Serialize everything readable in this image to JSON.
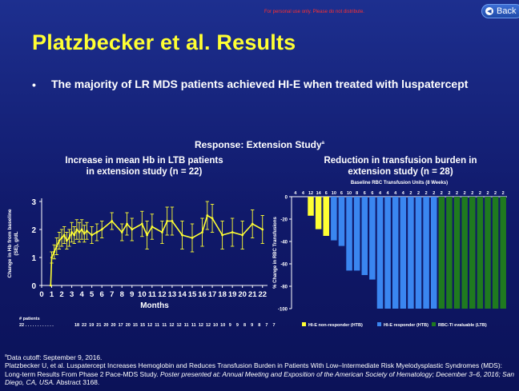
{
  "disclaimer": "For personal use only. Please do not distribute.",
  "back_button": {
    "label": "Back",
    "icon": "back-arrow-icon"
  },
  "title": "Platzbecker et al. Results",
  "bullet": "The majority of LR MDS patients achieved HI-E when treated with luspatercept",
  "study_title": "Response: Extension Study",
  "study_title_sup": "a",
  "colors": {
    "title": "#ffff33",
    "line": "#ffff33",
    "hie_non": "#ffff33",
    "hie": "#3a86f0",
    "rbcti": "#1f7a1f"
  },
  "chart_data": [
    {
      "type": "line",
      "title": "Increase in mean Hb in LTB patients in extension study (n = 22)",
      "title_lines": [
        "Increase in mean Hb in LTB patients",
        "in extension study (n = 22)"
      ],
      "xlabel": "Months",
      "ylabel_lines": [
        "Change in Hb from baseline",
        "(SE), g/dL"
      ],
      "xlim": [
        0,
        22.5
      ],
      "ylim": [
        0,
        3
      ],
      "xticks": [
        0,
        1,
        2,
        3,
        4,
        5,
        6,
        7,
        8,
        9,
        10,
        11,
        12,
        13,
        14,
        15,
        16,
        17,
        18,
        19,
        20,
        21,
        22
      ],
      "xtick_labels": [
        "0",
        "1",
        "2",
        "3",
        "4",
        "5",
        "6",
        "7",
        "8",
        "9",
        "10",
        "11",
        "12",
        "13",
        "14",
        "15",
        "16",
        "17",
        "18",
        "19",
        "20",
        "21",
        "22"
      ],
      "yticks": [
        0,
        1,
        2,
        3
      ],
      "patients_label": "# patients",
      "patients_counts": [
        "22",
        "18",
        "22",
        "19",
        "21",
        "20",
        "20",
        "17",
        "20",
        "15",
        "15",
        "12",
        "11",
        "11",
        "12",
        "12",
        "11",
        "11",
        "12",
        "12",
        "10",
        "10",
        "9",
        "9",
        "8",
        "9",
        "8",
        "7",
        "7"
      ],
      "patients_first": "22 . . . . . . . . . . . .",
      "x": [
        0.9,
        1.0,
        1.25,
        1.5,
        1.75,
        2.0,
        2.25,
        2.5,
        2.75,
        3.0,
        3.25,
        3.5,
        3.75,
        4.0,
        4.25,
        4.5,
        5.0,
        5.5,
        6.0,
        7.0,
        8.0,
        8.5,
        9.0,
        10.0,
        10.5,
        11.0,
        12.0,
        12.5,
        13.0,
        14.0,
        15.0,
        16.0,
        16.5,
        17.0,
        18.0,
        19.0,
        20.0,
        21.0,
        22.0
      ],
      "y": [
        0.0,
        1.0,
        1.2,
        1.4,
        1.6,
        1.7,
        1.8,
        1.6,
        1.7,
        1.9,
        1.8,
        2.0,
        1.9,
        2.0,
        1.85,
        1.95,
        1.8,
        1.9,
        2.0,
        2.3,
        1.9,
        2.2,
        2.0,
        2.2,
        1.8,
        2.1,
        1.9,
        2.3,
        2.3,
        1.8,
        1.7,
        1.9,
        2.5,
        2.4,
        1.8,
        1.9,
        1.8,
        2.2,
        2.0
      ],
      "se": [
        0.0,
        0.2,
        0.25,
        0.3,
        0.3,
        0.3,
        0.3,
        0.3,
        0.3,
        0.35,
        0.3,
        0.35,
        0.35,
        0.35,
        0.3,
        0.3,
        0.3,
        0.3,
        0.3,
        0.3,
        0.3,
        0.4,
        0.4,
        0.45,
        0.5,
        0.45,
        0.4,
        0.5,
        0.5,
        0.5,
        0.5,
        0.5,
        0.5,
        0.5,
        0.5,
        0.5,
        0.5,
        0.5,
        0.5
      ]
    },
    {
      "type": "bar",
      "title": "Reduction in transfusion burden in extension study (n = 28)",
      "title_lines": [
        "Reduction in transfusion burden in",
        "extension study (n = 28)"
      ],
      "subtitle": "Baseline RBC Transfusion Units (8 Weeks)",
      "ylabel": "% Change in RBC Transfusions",
      "ylim": [
        -100,
        0
      ],
      "yticks": [
        0,
        -20,
        -40,
        -60,
        -80,
        -100
      ],
      "top_labels": [
        "4",
        "4",
        "12",
        "14",
        "6",
        "10",
        "6",
        "10",
        "8",
        "6",
        "6",
        "4",
        "4",
        "4",
        "4",
        "2",
        "2",
        "2",
        "2",
        "2",
        "2",
        "2",
        "2",
        "2",
        "2",
        "2",
        "2",
        "2"
      ],
      "values": [
        0,
        0,
        -17,
        -29,
        -35,
        -39,
        -44,
        -66,
        -66,
        -70,
        -74,
        -100,
        -100,
        -100,
        -100,
        -100,
        -100,
        -100,
        -100,
        -100,
        -100,
        -100,
        -100,
        -100,
        -100,
        -100,
        -100,
        -100
      ],
      "categories": [
        "HI-E non-responder (HTB)",
        "HI-E non-responder (HTB)",
        "HI-E non-responder (HTB)",
        "HI-E non-responder (HTB)",
        "HI-E non-responder (HTB)",
        "HI-E responder (HTB)",
        "HI-E responder (HTB)",
        "HI-E responder (HTB)",
        "HI-E responder (HTB)",
        "HI-E responder (HTB)",
        "HI-E responder (HTB)",
        "HI-E responder (HTB)",
        "HI-E responder (HTB)",
        "HI-E responder (HTB)",
        "HI-E responder (HTB)",
        "HI-E responder (HTB)",
        "HI-E responder (HTB)",
        "HI-E responder (HTB)",
        "HI-E responder (HTB)",
        "RBC-TI evaluable (LTB)",
        "RBC-TI evaluable (LTB)",
        "RBC-TI evaluable (LTB)",
        "RBC-TI evaluable (LTB)",
        "RBC-TI evaluable (LTB)",
        "RBC-TI evaluable (LTB)",
        "RBC-TI evaluable (LTB)",
        "RBC-TI evaluable (LTB)",
        "RBC-TI evaluable (LTB)"
      ],
      "bar_groups": [
        "non",
        "non",
        "non",
        "non",
        "non",
        "hie",
        "hie",
        "hie",
        "hie",
        "hie",
        "hie",
        "hie",
        "hie",
        "hie",
        "hie",
        "hie",
        "hie",
        "hie",
        "hie",
        "ti",
        "ti",
        "ti",
        "ti",
        "ti",
        "ti",
        "ti",
        "ti",
        "ti"
      ],
      "legend": [
        {
          "key": "non",
          "label": "HI-E non-responder (HTB)"
        },
        {
          "key": "hie",
          "label": "HI-E responder (HTB)"
        },
        {
          "key": "ti",
          "label": "RBC-TI evaluable (LTB)"
        }
      ]
    }
  ],
  "footnote": {
    "sup": "a",
    "line1": "Data cutoff: September 9, 2016.",
    "line2_plain": "Platzbecker U, et al. Luspatercept Increases Hemoglobin and Reduces Transfusion Burden in Patients With Low–Intermediate Risk Myelodysplastic Syndromes (MDS): Long-term Results From Phase 2 Pace-MDS Study. ",
    "line2_italic": "Poster presented at: Annual Meeting and Exposition of the American Society of Hematology; December 3–6, 2016; San Diego, CA, USA.",
    "line2_end": " Abstract 3168."
  }
}
